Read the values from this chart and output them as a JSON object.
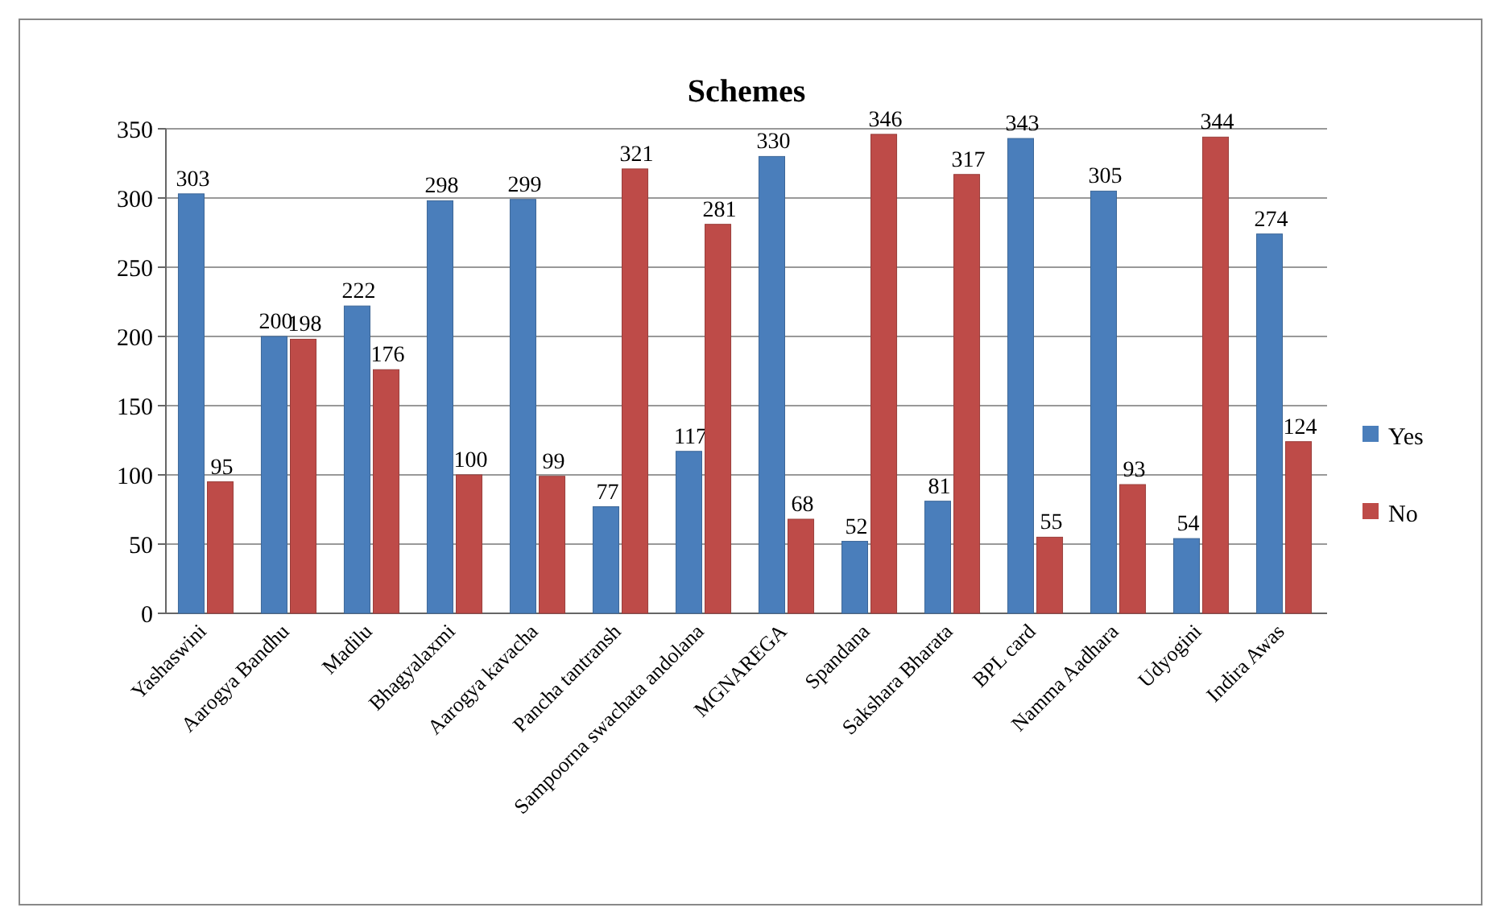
{
  "chart_data": {
    "type": "bar",
    "title": "Schemes",
    "categories": [
      "Yashaswini",
      "Aarogya Bandhu",
      "Madilu",
      "Bhagyalaxmi",
      "Aarogya kavacha",
      "Pancha tantransh",
      "Sampoorna swachata andolana",
      "MGNAREGA",
      "Spandana",
      "Sakshara Bharata",
      "BPL card",
      "Namma Aadhara",
      "Udyogini",
      "Indira Awas"
    ],
    "series": [
      {
        "name": "Yes",
        "color": "#4a7ebb",
        "values": [
          303,
          200,
          222,
          298,
          299,
          77,
          117,
          330,
          52,
          81,
          343,
          305,
          54,
          274
        ]
      },
      {
        "name": "No",
        "color": "#be4b48",
        "values": [
          95,
          198,
          176,
          100,
          99,
          321,
          281,
          68,
          346,
          317,
          55,
          93,
          344,
          124
        ]
      }
    ],
    "ylim": [
      0,
      350
    ],
    "yticks": [
      0,
      50,
      100,
      150,
      200,
      250,
      300,
      350
    ],
    "grid": "y",
    "legend": "right",
    "data_labels": true
  }
}
